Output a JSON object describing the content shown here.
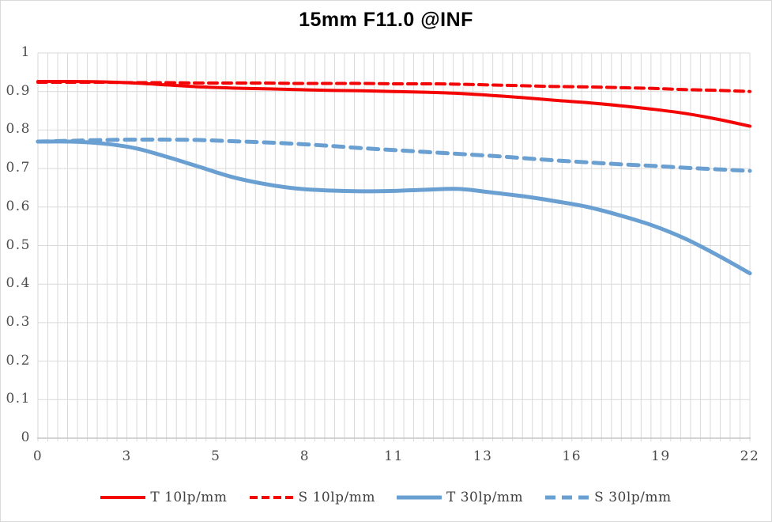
{
  "figure": {
    "title": "15mm F11.0 @INF"
  },
  "chart_data": {
    "type": "line",
    "title": "15mm F11.0 @INF",
    "xlabel": "",
    "ylabel": "",
    "xlim": [
      0,
      22
    ],
    "ylim": [
      0,
      1
    ],
    "grid": true,
    "minor_x_divisions": 72,
    "x_tick_labels": [
      "0",
      "3",
      "5",
      "8",
      "11",
      "13",
      "16",
      "19",
      "22"
    ],
    "y_tick_values": [
      0,
      0.1,
      0.2,
      0.3,
      0.4,
      0.5,
      0.6,
      0.7,
      0.8,
      0.9,
      1
    ],
    "y_tick_labels": [
      "0",
      "0.1",
      "0.2",
      "0.3",
      "0.4",
      "0.5",
      "0.6",
      "0.7",
      "0.8",
      "0.9",
      "1"
    ],
    "legend_position": "bottom",
    "x": [
      0,
      1,
      2,
      3,
      4,
      5,
      6,
      7,
      8,
      9,
      10,
      11,
      12,
      13,
      14,
      15,
      16,
      17,
      18,
      19,
      20,
      21,
      22
    ],
    "series": [
      {
        "name": "T 10lp/mm",
        "style": "solid",
        "color": "#f40505",
        "values": [
          0.926,
          0.926,
          0.925,
          0.922,
          0.917,
          0.912,
          0.909,
          0.907,
          0.905,
          0.903,
          0.902,
          0.9,
          0.898,
          0.895,
          0.89,
          0.884,
          0.877,
          0.871,
          0.863,
          0.854,
          0.843,
          0.828,
          0.81
        ]
      },
      {
        "name": "S 10lp/mm",
        "style": "dashed",
        "color": "#f40505",
        "values": [
          0.924,
          0.924,
          0.924,
          0.923,
          0.923,
          0.922,
          0.922,
          0.922,
          0.921,
          0.921,
          0.921,
          0.92,
          0.92,
          0.919,
          0.917,
          0.915,
          0.913,
          0.912,
          0.91,
          0.908,
          0.905,
          0.903,
          0.9
        ]
      },
      {
        "name": "T 30lp/mm",
        "style": "solid",
        "color": "#6a9fd2",
        "values": [
          0.77,
          0.77,
          0.765,
          0.753,
          0.73,
          0.704,
          0.678,
          0.66,
          0.648,
          0.643,
          0.641,
          0.642,
          0.645,
          0.647,
          0.638,
          0.628,
          0.615,
          0.6,
          0.578,
          0.552,
          0.518,
          0.475,
          0.428
        ]
      },
      {
        "name": "S 30lp/mm",
        "style": "dashed",
        "color": "#6a9fd2",
        "values": [
          0.77,
          0.772,
          0.774,
          0.775,
          0.775,
          0.774,
          0.771,
          0.768,
          0.764,
          0.759,
          0.753,
          0.748,
          0.743,
          0.738,
          0.733,
          0.727,
          0.721,
          0.716,
          0.711,
          0.707,
          0.702,
          0.698,
          0.694
        ]
      }
    ],
    "colors": {
      "grid": "#d9d9d9",
      "axis": "#c6c6c6",
      "tick_text": "#4d4d4d",
      "red_series": "#f40505",
      "blue_series": "#6a9fd2"
    }
  }
}
